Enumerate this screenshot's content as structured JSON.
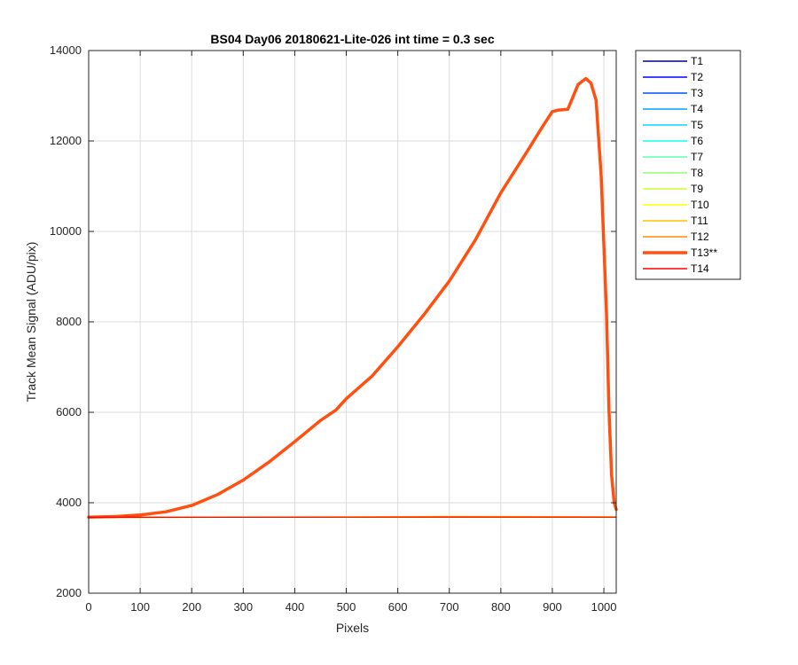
{
  "chart_data": {
    "type": "line",
    "title": "BS04 Day06 20180621-Lite-026 int time = 0.3 sec",
    "xlabel": "Pixels",
    "ylabel": "Track Mean Signal (ADU/pix)",
    "xlim": [
      0,
      1024
    ],
    "ylim": [
      2000,
      14000
    ],
    "xticks": [
      0,
      100,
      200,
      300,
      400,
      500,
      600,
      700,
      800,
      900,
      1000
    ],
    "yticks": [
      2000,
      4000,
      6000,
      8000,
      10000,
      12000,
      14000
    ],
    "grid": true,
    "legend_position": "outside-right-top",
    "series": [
      {
        "name": "T1",
        "color": "#00008f",
        "x": [
          0,
          512,
          1024
        ],
        "y": [
          3680,
          3680,
          3680
        ]
      },
      {
        "name": "T2",
        "color": "#0000ff",
        "x": [
          0,
          512,
          1024
        ],
        "y": [
          3680,
          3680,
          3680
        ]
      },
      {
        "name": "T3",
        "color": "#0050ff",
        "x": [
          0,
          512,
          1024
        ],
        "y": [
          3680,
          3680,
          3680
        ]
      },
      {
        "name": "T4",
        "color": "#00a0ff",
        "x": [
          0,
          512,
          1024
        ],
        "y": [
          3680,
          3680,
          3680
        ]
      },
      {
        "name": "T5",
        "color": "#00d8ff",
        "x": [
          0,
          512,
          1024
        ],
        "y": [
          3680,
          3680,
          3680
        ]
      },
      {
        "name": "T6",
        "color": "#10ffef",
        "x": [
          0,
          512,
          1024
        ],
        "y": [
          3680,
          3680,
          3680
        ]
      },
      {
        "name": "T7",
        "color": "#60ffb0",
        "x": [
          0,
          512,
          1024
        ],
        "y": [
          3680,
          3680,
          3680
        ]
      },
      {
        "name": "T8",
        "color": "#90ff70",
        "x": [
          0,
          512,
          1024
        ],
        "y": [
          3680,
          3680,
          3680
        ]
      },
      {
        "name": "T9",
        "color": "#c8ff30",
        "x": [
          0,
          512,
          1024
        ],
        "y": [
          3680,
          3680,
          3680
        ]
      },
      {
        "name": "T10",
        "color": "#ffff00",
        "x": [
          0,
          512,
          1024
        ],
        "y": [
          3680,
          3685,
          3682
        ]
      },
      {
        "name": "T11",
        "color": "#ffc000",
        "x": [
          0,
          512,
          700,
          1024
        ],
        "y": [
          3675,
          3690,
          3700,
          3690
        ]
      },
      {
        "name": "T12",
        "color": "#ff8800",
        "x": [
          0,
          512,
          700,
          1024
        ],
        "y": [
          3670,
          3685,
          3695,
          3685
        ]
      },
      {
        "name": "T13**",
        "color": "#ff5010",
        "bold": true,
        "x": [
          0,
          50,
          100,
          150,
          200,
          250,
          300,
          350,
          400,
          450,
          480,
          500,
          550,
          600,
          650,
          700,
          750,
          800,
          850,
          880,
          900,
          910,
          930,
          950,
          965,
          975,
          985,
          995,
          1005,
          1010,
          1015,
          1020,
          1024
        ],
        "y": [
          3680,
          3695,
          3730,
          3800,
          3940,
          4180,
          4500,
          4900,
          5350,
          5820,
          6050,
          6300,
          6800,
          7450,
          8150,
          8900,
          9800,
          10850,
          11750,
          12300,
          12650,
          12680,
          12700,
          13250,
          13380,
          13280,
          12900,
          11200,
          8200,
          6000,
          4600,
          4000,
          3850
        ]
      },
      {
        "name": "T14",
        "color": "#ff0000",
        "x": [
          0,
          512,
          1024
        ],
        "y": [
          3678,
          3680,
          3680
        ]
      }
    ]
  }
}
